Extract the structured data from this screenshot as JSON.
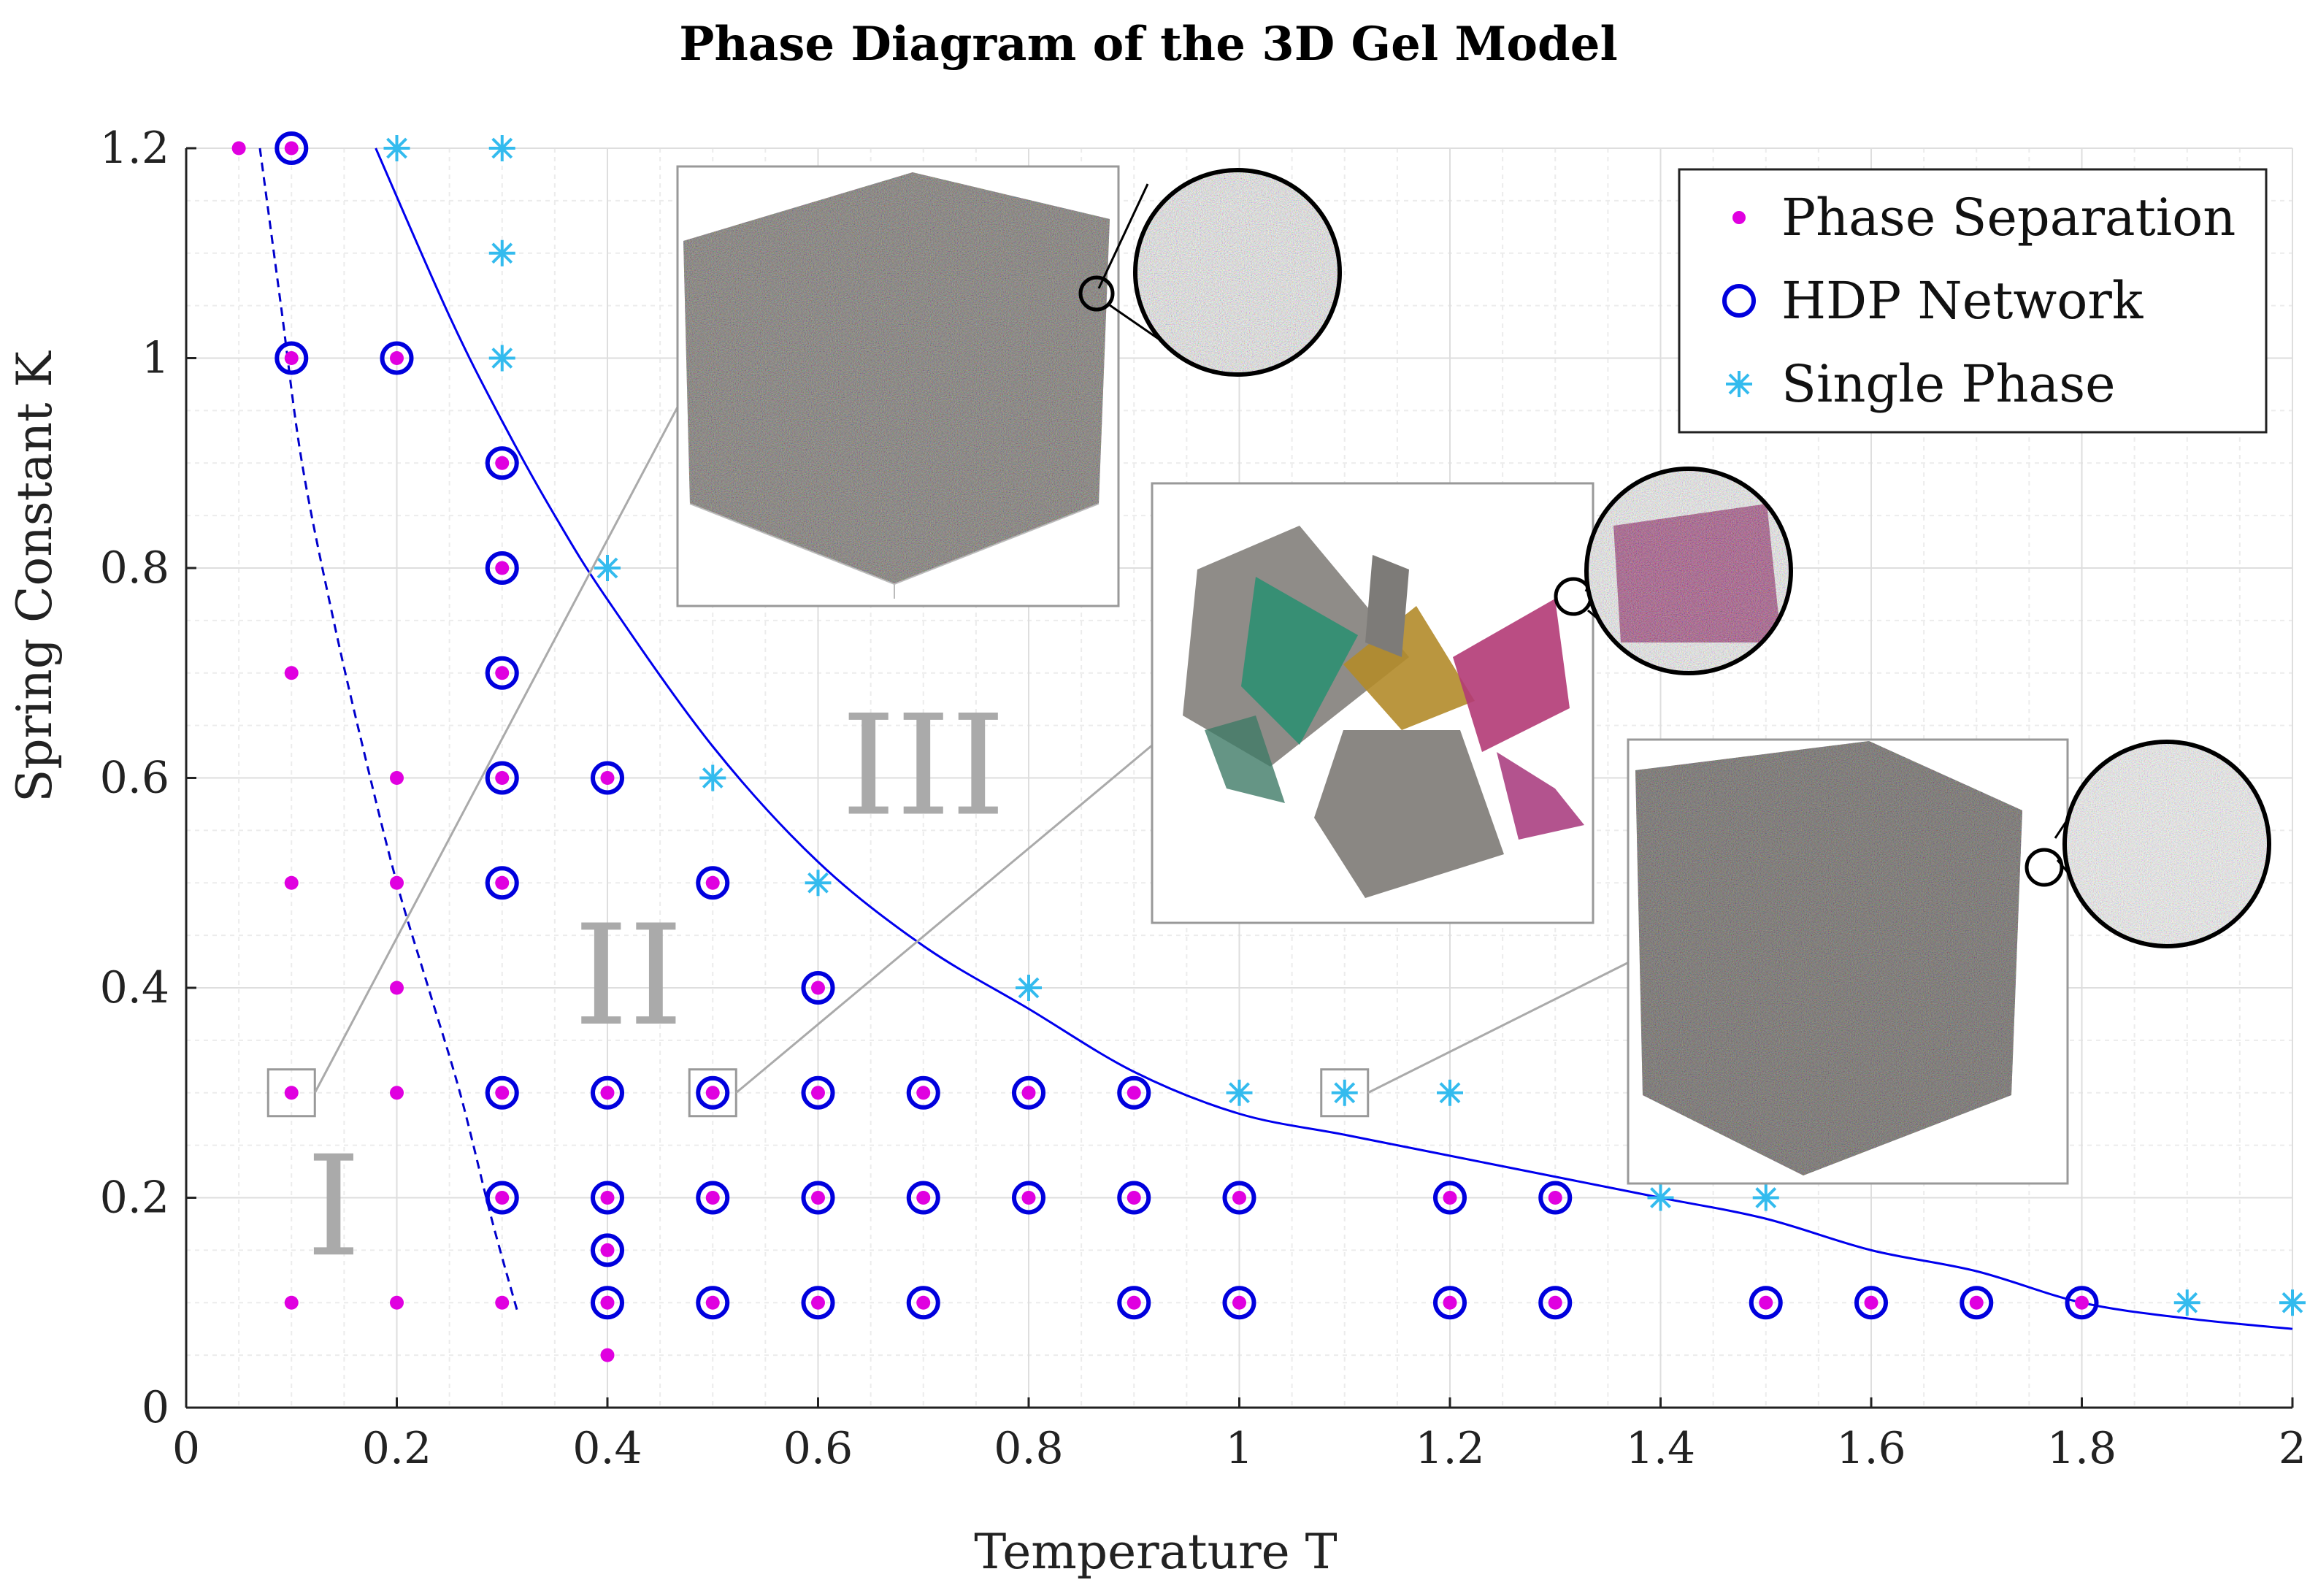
{
  "chart_data": {
    "type": "scatter",
    "title": "Phase Diagram of the 3D Gel Model",
    "xlabel": "Temperature T",
    "ylabel": "Spring Constant K",
    "xlim": [
      0,
      2
    ],
    "ylim": [
      0,
      1.2
    ],
    "grid": true,
    "minor_grid": true,
    "xticks": [
      0,
      0.2,
      0.4,
      0.6,
      0.8,
      1,
      1.2,
      1.4,
      1.6,
      1.8,
      2
    ],
    "yticks": [
      0,
      0.2,
      0.4,
      0.6,
      0.8,
      1,
      1.2
    ],
    "xtick_labels": [
      "0",
      "0.2",
      "0.4",
      "0.6",
      "0.8",
      "1",
      "1.2",
      "1.4",
      "1.6",
      "1.8",
      "2"
    ],
    "ytick_labels": [
      "0",
      "0.2",
      "0.4",
      "0.6",
      "0.8",
      "1",
      "1.2"
    ],
    "legend_position": "top-right",
    "series": [
      {
        "name": "Phase Separation",
        "marker": "dot",
        "color": "#e000e0",
        "points": [
          [
            0.05,
            1.2
          ],
          [
            0.1,
            0.7
          ],
          [
            0.1,
            0.5
          ],
          [
            0.1,
            0.3
          ],
          [
            0.1,
            0.1
          ],
          [
            0.2,
            0.6
          ],
          [
            0.2,
            0.5
          ],
          [
            0.2,
            0.4
          ],
          [
            0.2,
            0.3
          ],
          [
            0.2,
            0.1
          ],
          [
            0.3,
            0.1
          ],
          [
            0.4,
            0.05
          ],
          [
            0.1,
            1.2
          ],
          [
            0.1,
            1.0
          ],
          [
            0.2,
            1.0
          ],
          [
            0.3,
            0.9
          ],
          [
            0.3,
            0.8
          ],
          [
            0.3,
            0.7
          ],
          [
            0.3,
            0.6
          ],
          [
            0.3,
            0.5
          ],
          [
            0.3,
            0.3
          ],
          [
            0.3,
            0.2
          ],
          [
            0.4,
            0.6
          ],
          [
            0.4,
            0.3
          ],
          [
            0.4,
            0.2
          ],
          [
            0.4,
            0.15
          ],
          [
            0.4,
            0.1
          ],
          [
            0.5,
            0.5
          ],
          [
            0.5,
            0.3
          ],
          [
            0.5,
            0.2
          ],
          [
            0.5,
            0.1
          ],
          [
            0.6,
            0.4
          ],
          [
            0.6,
            0.3
          ],
          [
            0.6,
            0.2
          ],
          [
            0.6,
            0.1
          ],
          [
            0.7,
            0.3
          ],
          [
            0.7,
            0.2
          ],
          [
            0.7,
            0.1
          ],
          [
            0.8,
            0.3
          ],
          [
            0.8,
            0.2
          ],
          [
            0.9,
            0.3
          ],
          [
            0.9,
            0.2
          ],
          [
            0.9,
            0.1
          ],
          [
            1.0,
            0.2
          ],
          [
            1.0,
            0.1
          ],
          [
            1.2,
            0.2
          ],
          [
            1.2,
            0.1
          ],
          [
            1.3,
            0.2
          ],
          [
            1.3,
            0.1
          ],
          [
            1.5,
            0.1
          ],
          [
            1.6,
            0.1
          ],
          [
            1.7,
            0.1
          ],
          [
            1.8,
            0.1
          ]
        ]
      },
      {
        "name": "HDP Network",
        "marker": "circle",
        "color": "#0000dd",
        "points": [
          [
            0.1,
            1.2
          ],
          [
            0.1,
            1.0
          ],
          [
            0.2,
            1.0
          ],
          [
            0.3,
            0.9
          ],
          [
            0.3,
            0.8
          ],
          [
            0.3,
            0.7
          ],
          [
            0.3,
            0.6
          ],
          [
            0.3,
            0.5
          ],
          [
            0.3,
            0.3
          ],
          [
            0.3,
            0.2
          ],
          [
            0.4,
            0.6
          ],
          [
            0.4,
            0.3
          ],
          [
            0.4,
            0.2
          ],
          [
            0.4,
            0.15
          ],
          [
            0.4,
            0.1
          ],
          [
            0.5,
            0.5
          ],
          [
            0.5,
            0.3
          ],
          [
            0.5,
            0.2
          ],
          [
            0.5,
            0.1
          ],
          [
            0.6,
            0.4
          ],
          [
            0.6,
            0.3
          ],
          [
            0.6,
            0.2
          ],
          [
            0.6,
            0.1
          ],
          [
            0.7,
            0.3
          ],
          [
            0.7,
            0.2
          ],
          [
            0.7,
            0.1
          ],
          [
            0.8,
            0.3
          ],
          [
            0.8,
            0.2
          ],
          [
            0.9,
            0.3
          ],
          [
            0.9,
            0.2
          ],
          [
            0.9,
            0.1
          ],
          [
            1.0,
            0.2
          ],
          [
            1.0,
            0.1
          ],
          [
            1.2,
            0.2
          ],
          [
            1.2,
            0.1
          ],
          [
            1.3,
            0.2
          ],
          [
            1.3,
            0.1
          ],
          [
            1.5,
            0.1
          ],
          [
            1.6,
            0.1
          ],
          [
            1.7,
            0.1
          ],
          [
            1.8,
            0.1
          ]
        ]
      },
      {
        "name": "Single Phase",
        "marker": "asterisk",
        "color": "#33bbee",
        "points": [
          [
            0.2,
            1.2
          ],
          [
            0.3,
            1.2
          ],
          [
            0.3,
            1.1
          ],
          [
            0.3,
            1.0
          ],
          [
            0.4,
            0.8
          ],
          [
            0.5,
            0.6
          ],
          [
            0.6,
            0.5
          ],
          [
            0.8,
            0.4
          ],
          [
            1.0,
            0.3
          ],
          [
            1.1,
            0.3
          ],
          [
            1.2,
            0.3
          ],
          [
            1.4,
            0.2
          ],
          [
            1.5,
            0.2
          ],
          [
            1.9,
            0.1
          ],
          [
            2.0,
            0.1
          ]
        ]
      }
    ],
    "boundaries": [
      {
        "name": "phase separation boundary",
        "style": "dashed",
        "color": "#0000cc",
        "x": [
          0.07,
          0.09,
          0.11,
          0.14,
          0.17,
          0.2,
          0.23,
          0.26,
          0.29,
          0.315
        ],
        "y": [
          1.2,
          1.05,
          0.9,
          0.75,
          0.62,
          0.5,
          0.4,
          0.3,
          0.18,
          0.09
        ]
      },
      {
        "name": "single phase boundary",
        "style": "solid",
        "color": "#0000ee",
        "x": [
          0.18,
          0.25,
          0.3,
          0.35,
          0.4,
          0.5,
          0.6,
          0.7,
          0.8,
          0.9,
          1.0,
          1.1,
          1.2,
          1.3,
          1.4,
          1.5,
          1.6,
          1.7,
          1.8,
          1.9,
          2.0
        ],
        "y": [
          1.2,
          1.04,
          0.94,
          0.85,
          0.77,
          0.63,
          0.52,
          0.44,
          0.38,
          0.32,
          0.28,
          0.26,
          0.24,
          0.22,
          0.2,
          0.18,
          0.15,
          0.13,
          0.1,
          0.085,
          0.075
        ]
      }
    ],
    "regions": [
      {
        "label": "I",
        "x": 0.14,
        "y": 0.18
      },
      {
        "label": "II",
        "x": 0.42,
        "y": 0.4
      },
      {
        "label": "III",
        "x": 0.7,
        "y": 0.6
      }
    ],
    "highlighted_points": [
      [
        0.1,
        0.3
      ],
      [
        0.5,
        0.3
      ],
      [
        1.1,
        0.3
      ]
    ]
  },
  "insets": [
    {
      "name": "homogeneous gel snapshot",
      "linked_point": [
        0.1,
        0.3
      ]
    },
    {
      "name": "network snapshot",
      "linked_point": [
        0.5,
        0.3
      ]
    },
    {
      "name": "single phase snapshot",
      "linked_point": [
        1.1,
        0.3
      ]
    }
  ],
  "colors": {
    "phase_separation": "#e000e0",
    "hdp_network": "#0000dd",
    "single_phase": "#33bbee",
    "region_label": "#aaaaaa",
    "grid": "#e4e4e4",
    "connector": "#aaaaaa"
  }
}
